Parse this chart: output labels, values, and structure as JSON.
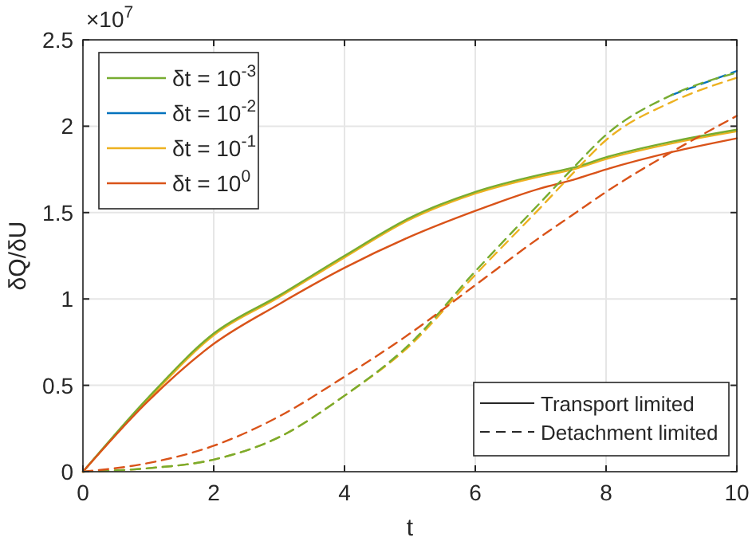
{
  "chart_data": {
    "type": "line",
    "xlabel": "t",
    "ylabel": "δQ/δU",
    "xlim": [
      0,
      10
    ],
    "xticks": [
      0,
      2,
      4,
      6,
      8,
      10
    ],
    "ylim": [
      0,
      2.5
    ],
    "yticks": [
      0,
      0.5,
      1,
      1.5,
      2,
      2.5
    ],
    "grid": true,
    "legend": "top left",
    "annotations": [
      "×10$^{7}$",
      "Transport limited",
      "Detachment limited"
    ],
    "x": [
      0,
      1,
      2,
      3,
      4,
      5,
      6,
      7,
      7.5,
      8,
      9,
      10
    ],
    "series": [
      {
        "name": "δt = 10$^{-2}$",
        "color": "#0072bd",
        "line_style": "solid",
        "values": [
          null,
          null,
          null,
          null,
          null,
          null,
          null,
          null,
          null,
          null,
          null,
          null
        ]
      },
      {
        "name": "δt = 10$^{-1}$",
        "color": "#edb120",
        "line_style": "solid",
        "values": [
          0,
          0.42,
          0.79,
          1.01,
          1.24,
          1.46,
          1.61,
          1.71,
          1.75,
          1.81,
          1.9,
          1.97
        ]
      },
      {
        "name": "δt = 10$^{-3}$",
        "color": "#77ac30",
        "line_style": "solid",
        "values": [
          0,
          0.43,
          0.8,
          1.02,
          1.25,
          1.47,
          1.62,
          1.72,
          1.76,
          1.82,
          1.91,
          1.98
        ]
      },
      {
        "name": "δt = 10$^{0}$",
        "color": "#d95319",
        "line_style": "solid",
        "values": [
          0,
          0.41,
          0.74,
          0.97,
          1.18,
          1.36,
          1.51,
          1.64,
          1.69,
          1.75,
          1.85,
          1.93
        ]
      },
      {
        "color": "#edb120",
        "line_style": "dashed",
        "values": [
          0,
          0.02,
          0.07,
          0.2,
          0.44,
          0.73,
          1.14,
          1.53,
          1.73,
          1.92,
          2.14,
          2.28
        ]
      },
      {
        "color": "#0072bd",
        "line_style": "dashed",
        "values": [
          null,
          null,
          null,
          null,
          null,
          null,
          null,
          null,
          null,
          null,
          2.18,
          2.32
        ]
      },
      {
        "color": "#77ac30",
        "line_style": "dashed",
        "values": [
          0,
          0.02,
          0.07,
          0.2,
          0.44,
          0.74,
          1.16,
          1.56,
          1.76,
          1.95,
          2.18,
          2.31
        ]
      },
      {
        "color": "#d95319",
        "line_style": "dashed",
        "values": [
          0,
          0.05,
          0.15,
          0.32,
          0.55,
          0.8,
          1.08,
          1.36,
          1.49,
          1.62,
          1.85,
          2.06
        ]
      }
    ]
  }
}
